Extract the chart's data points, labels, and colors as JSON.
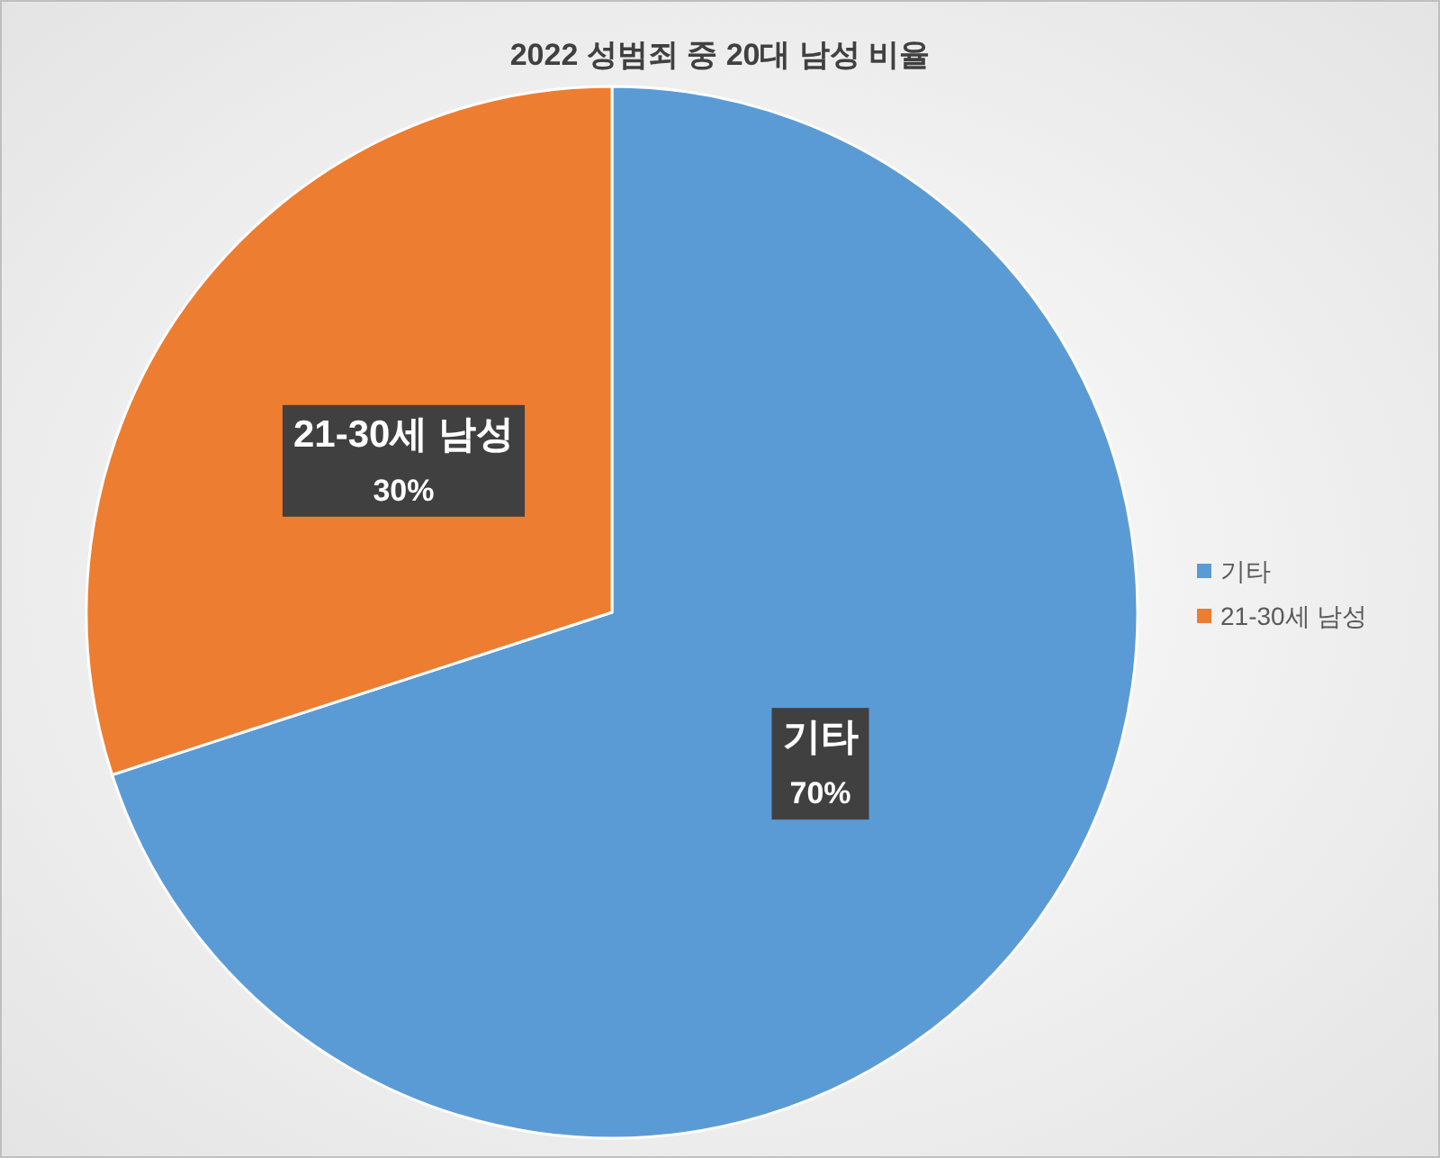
{
  "chart_data": {
    "type": "pie",
    "title": "2022 성범죄 중 20대 남성 비율",
    "categories": [
      "기타",
      "21-30세 남성"
    ],
    "values": [
      70,
      30
    ],
    "colors": [
      "#5b9bd5",
      "#ed7d31"
    ],
    "value_labels": [
      "70%",
      "30%"
    ],
    "legend": "right"
  }
}
